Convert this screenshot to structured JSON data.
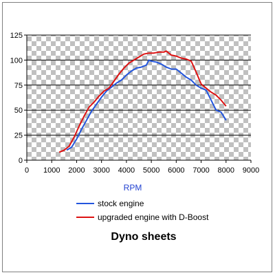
{
  "chart_data": {
    "type": "line",
    "title": "Dyno sheets",
    "xlabel": "RPM",
    "ylabel": "",
    "xlim": [
      0,
      9000
    ],
    "ylim": [
      0,
      125
    ],
    "xticks": [
      0,
      1000,
      2000,
      3000,
      4000,
      5000,
      6000,
      7000,
      8000,
      9000
    ],
    "yticks": [
      0,
      25,
      50,
      75,
      100,
      125
    ],
    "grid": true,
    "plot_background": "checkerboard",
    "legend_position": "bottom",
    "series": [
      {
        "name": "stock engine",
        "color": "#2255dd",
        "x": [
          1600,
          1800,
          2000,
          2200,
          2400,
          2600,
          2800,
          3000,
          3200,
          3400,
          3600,
          3800,
          4000,
          4200,
          4400,
          4600,
          4800,
          4900,
          5000,
          5200,
          5400,
          5600,
          5800,
          6000,
          6200,
          6400,
          6600,
          6800,
          7000,
          7200,
          7400,
          7600,
          7800,
          8000
        ],
        "y": [
          10,
          13,
          21,
          31,
          40,
          49,
          56,
          63,
          69,
          73,
          77,
          80,
          85,
          89,
          92,
          93,
          95,
          100,
          99,
          98,
          96,
          93,
          91,
          91,
          87,
          83,
          80,
          75,
          72,
          70,
          60,
          50,
          48,
          40
        ]
      },
      {
        "name": "upgraded engine with D-Boost",
        "color": "#dd1111",
        "x": [
          1300,
          1500,
          1700,
          1900,
          2100,
          2300,
          2500,
          2700,
          2900,
          3100,
          3300,
          3500,
          3700,
          3900,
          4100,
          4300,
          4500,
          4700,
          4900,
          5100,
          5300,
          5500,
          5600,
          5700,
          5800,
          6000,
          6200,
          6400,
          6600,
          6800,
          7000,
          7200,
          7400,
          7600,
          7800,
          8000
        ],
        "y": [
          8,
          10,
          14,
          23,
          34,
          44,
          53,
          58,
          64,
          69,
          72,
          79,
          86,
          92,
          97,
          100,
          103,
          106,
          107,
          107,
          108,
          108,
          109,
          107,
          105,
          104,
          102,
          101,
          99,
          88,
          76,
          72,
          68,
          65,
          60,
          54
        ]
      }
    ]
  }
}
